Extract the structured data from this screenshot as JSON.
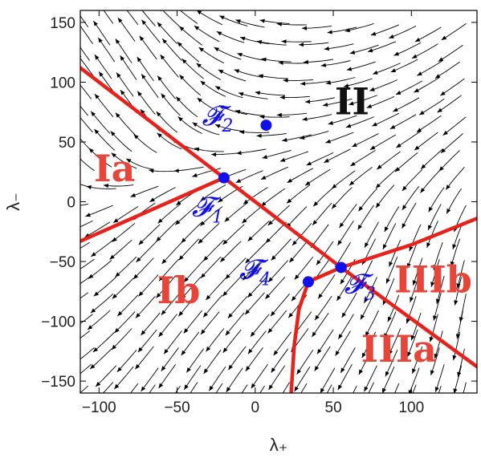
{
  "chart_data": {
    "type": "scatter",
    "description_kind": "stream-plot",
    "xlabel": "λ₊",
    "ylabel": "λ₋",
    "xlim": [
      -112,
      142
    ],
    "ylim": [
      -160,
      160
    ],
    "xticks": [
      -100,
      -50,
      0,
      50,
      100
    ],
    "yticks": [
      -150,
      -100,
      -50,
      0,
      50,
      100,
      150
    ],
    "grid": false,
    "colors": {
      "boundary": "#e8211b",
      "fixed_point": "#1010ee",
      "region_label": "#e8453a",
      "region_II": "#111111",
      "stream": "#000000"
    },
    "fixed_points": [
      {
        "name": "𝓕",
        "sub": "1",
        "x": -20,
        "y": 20
      },
      {
        "name": "𝓕",
        "sub": "2",
        "x": 7,
        "y": 64
      },
      {
        "name": "𝓕",
        "sub": "3",
        "x": 55,
        "y": -55
      },
      {
        "name": "𝓕",
        "sub": "4",
        "x": 34,
        "y": -67
      }
    ],
    "boundaries": [
      {
        "name": "line-upper-left",
        "points": [
          [
            -112,
            112
          ],
          [
            -20,
            20
          ]
        ]
      },
      {
        "name": "line-center",
        "points": [
          [
            -20,
            20
          ],
          [
            55,
            -55
          ],
          [
            142,
            -138
          ]
        ]
      },
      {
        "name": "line-lower-left",
        "points": [
          [
            -112,
            -33
          ],
          [
            -20,
            20
          ]
        ]
      },
      {
        "name": "line-right",
        "points": [
          [
            55,
            -55
          ],
          [
            100,
            -36
          ],
          [
            142,
            -14
          ]
        ]
      },
      {
        "name": "line-f4-f3",
        "points": [
          [
            34,
            -67
          ],
          [
            55,
            -55
          ]
        ]
      },
      {
        "name": "line-bottom",
        "points": [
          [
            34,
            -67
          ],
          [
            28,
            -90
          ],
          [
            25,
            -120
          ],
          [
            23,
            -160
          ]
        ]
      }
    ],
    "regions": [
      {
        "label": "II",
        "x": 62,
        "y": 84
      },
      {
        "label": "Ia",
        "x": -90,
        "y": 28
      },
      {
        "label": "Ib",
        "x": -49,
        "y": -74
      },
      {
        "label": "IIIb",
        "x": 114,
        "y": -65
      },
      {
        "label": "IIIa",
        "x": 92,
        "y": -123
      }
    ]
  }
}
